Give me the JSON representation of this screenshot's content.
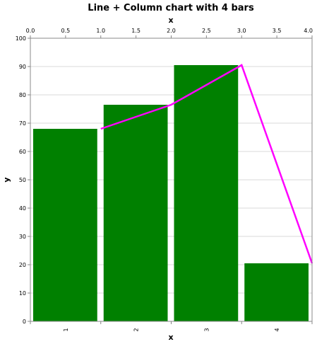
{
  "chart_data": {
    "type": "bar",
    "title": "Line + Column chart with 4 bars",
    "xlabel": "x",
    "ylabel": "y",
    "top_xlabel": "x",
    "categories": [
      "1",
      "2",
      "3",
      "4"
    ],
    "bars": {
      "values": [
        68,
        76.5,
        90.5,
        20.5
      ],
      "color": "#008000"
    },
    "line": {
      "x": [
        1.0,
        2.0,
        3.0,
        4.0
      ],
      "y": [
        68,
        76.5,
        90.5,
        20.5
      ],
      "color": "#ff00ff"
    },
    "ylim": [
      0,
      100
    ],
    "yticks": [
      "0",
      "10",
      "20",
      "30",
      "40",
      "50",
      "60",
      "70",
      "80",
      "90",
      "100"
    ],
    "top_xlim": [
      0,
      4
    ],
    "top_xticks": [
      "0.0",
      "0.5",
      "1.0",
      "1.5",
      "2.0",
      "2.5",
      "3.0",
      "3.5",
      "4.0"
    ],
    "grid": true
  }
}
